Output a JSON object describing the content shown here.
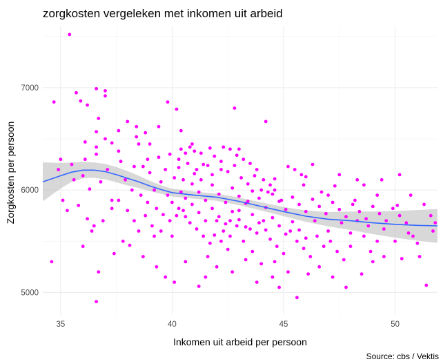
{
  "chart_data": {
    "type": "scatter",
    "title": "zorgkosten vergeleken met inkomen uit arbeid",
    "xlabel": "Inkomen uit arbeid per persoon",
    "ylabel": "Zorgkosten per persoon",
    "caption": "Source: cbs / Vektis",
    "xlim": [
      34.2,
      51.9
    ],
    "ylim": [
      4780,
      7600
    ],
    "x_ticks": [
      35,
      40,
      45,
      50
    ],
    "y_ticks": [
      5000,
      6000,
      7000
    ],
    "grid": true,
    "point_color": "#ff00ff",
    "smooth_color": "#3366ff",
    "band_color": "#bebebe",
    "points": [
      [
        35.4,
        7520
      ],
      [
        35.7,
        6950
      ],
      [
        37.0,
        6970
      ],
      [
        37.0,
        6920
      ],
      [
        36.6,
        6990
      ],
      [
        34.7,
        6860
      ],
      [
        35.9,
        6870
      ],
      [
        36.2,
        6830
      ],
      [
        36.7,
        6700
      ],
      [
        39.8,
        6860
      ],
      [
        40.2,
        6790
      ],
      [
        42.8,
        6800
      ],
      [
        44.2,
        6670
      ],
      [
        38.0,
        6670
      ],
      [
        38.4,
        6620
      ],
      [
        39.4,
        6620
      ],
      [
        40.4,
        6580
      ],
      [
        37.6,
        6580
      ],
      [
        36.1,
        6470
      ],
      [
        36.6,
        6420
      ],
      [
        36.6,
        6570
      ],
      [
        38.4,
        6520
      ],
      [
        38.8,
        6560
      ],
      [
        38.5,
        6450
      ],
      [
        36.1,
        6300
      ],
      [
        36.6,
        6350
      ],
      [
        35.0,
        6300
      ],
      [
        35.5,
        6250
      ],
      [
        34.9,
        6200
      ],
      [
        36.0,
        6140
      ],
      [
        36.8,
        6080
      ],
      [
        37.1,
        6200
      ],
      [
        37.0,
        6500
      ],
      [
        37.3,
        6460
      ],
      [
        37.6,
        6380
      ],
      [
        37.7,
        6280
      ],
      [
        38.3,
        6230
      ],
      [
        38.9,
        6300
      ],
      [
        39.4,
        6320
      ],
      [
        39.9,
        6350
      ],
      [
        40.4,
        6400
      ],
      [
        40.6,
        6360
      ],
      [
        40.8,
        6420
      ],
      [
        41.0,
        6380
      ],
      [
        41.3,
        6360
      ],
      [
        41.1,
        6200
      ],
      [
        41.4,
        6250
      ],
      [
        41.8,
        6150
      ],
      [
        42.2,
        6200
      ],
      [
        42.6,
        6400
      ],
      [
        42.9,
        6340
      ],
      [
        43.2,
        6300
      ],
      [
        43.5,
        6260
      ],
      [
        43.8,
        6200
      ],
      [
        44.1,
        6100
      ],
      [
        44.4,
        6050
      ],
      [
        44.6,
        6000
      ],
      [
        45.2,
        6230
      ],
      [
        45.5,
        6200
      ],
      [
        45.8,
        6150
      ],
      [
        46.0,
        6130
      ],
      [
        46.3,
        6250
      ],
      [
        47.0,
        5950
      ],
      [
        47.5,
        6150
      ],
      [
        48.3,
        6100
      ],
      [
        48.6,
        6050
      ],
      [
        49.4,
        6100
      ],
      [
        50.2,
        6150
      ],
      [
        51.3,
        5860
      ],
      [
        51.6,
        5750
      ],
      [
        35.8,
        5850
      ],
      [
        35.3,
        5800
      ],
      [
        36.2,
        5720
      ],
      [
        36.5,
        5650
      ],
      [
        37.3,
        5820
      ],
      [
        37.6,
        5900
      ],
      [
        38.0,
        5800
      ],
      [
        38.3,
        5700
      ],
      [
        38.8,
        5750
      ],
      [
        39.1,
        5650
      ],
      [
        39.5,
        5600
      ],
      [
        39.9,
        5700
      ],
      [
        40.2,
        5750
      ],
      [
        40.5,
        5800
      ],
      [
        40.8,
        5680
      ],
      [
        41.1,
        5620
      ],
      [
        41.4,
        5550
      ],
      [
        41.7,
        5480
      ],
      [
        42.0,
        5700
      ],
      [
        42.3,
        5600
      ],
      [
        42.6,
        5550
      ],
      [
        42.9,
        5650
      ],
      [
        43.2,
        5500
      ],
      [
        43.5,
        5620
      ],
      [
        43.8,
        5580
      ],
      [
        44.1,
        5700
      ],
      [
        44.4,
        5520
      ],
      [
        44.7,
        5450
      ],
      [
        45.0,
        5380
      ],
      [
        45.3,
        5600
      ],
      [
        45.6,
        5500
      ],
      [
        45.9,
        5430
      ],
      [
        46.2,
        5350
      ],
      [
        46.5,
        5550
      ],
      [
        46.8,
        5450
      ],
      [
        47.1,
        5500
      ],
      [
        47.4,
        5400
      ],
      [
        47.7,
        5320
      ],
      [
        48.0,
        5450
      ],
      [
        48.3,
        5700
      ],
      [
        48.6,
        5550
      ],
      [
        48.9,
        5400
      ],
      [
        49.2,
        5500
      ],
      [
        49.5,
        5350
      ],
      [
        50.0,
        5500
      ],
      [
        50.8,
        5550
      ],
      [
        51.1,
        5350
      ],
      [
        51.8,
        5680
      ],
      [
        34.6,
        5300
      ],
      [
        36.0,
        5450
      ],
      [
        36.7,
        5200
      ],
      [
        37.4,
        5380
      ],
      [
        38.1,
        5460
      ],
      [
        38.7,
        5350
      ],
      [
        39.3,
        5250
      ],
      [
        39.7,
        5150
      ],
      [
        40.6,
        5300
      ],
      [
        41.2,
        5060
      ],
      [
        41.5,
        5150
      ],
      [
        42.0,
        5250
      ],
      [
        42.7,
        5200
      ],
      [
        43.3,
        5320
      ],
      [
        44.0,
        5280
      ],
      [
        44.5,
        5150
      ],
      [
        44.8,
        5050
      ],
      [
        45.6,
        4950
      ],
      [
        46.1,
        5180
      ],
      [
        46.6,
        5250
      ],
      [
        47.2,
        5150
      ],
      [
        47.8,
        5050
      ],
      [
        48.5,
        5180
      ],
      [
        49.0,
        5300
      ],
      [
        50.3,
        5330
      ],
      [
        51.4,
        5070
      ],
      [
        36.6,
        4910
      ],
      [
        40.4,
        5980
      ],
      [
        40.6,
        5920
      ],
      [
        40.9,
        6060
      ],
      [
        41.2,
        5980
      ],
      [
        41.5,
        5900
      ],
      [
        41.8,
        6050
      ],
      [
        42.1,
        5960
      ],
      [
        42.4,
        5880
      ],
      [
        42.7,
        6020
      ],
      [
        43.0,
        5940
      ],
      [
        43.3,
        5870
      ],
      [
        43.6,
        5990
      ],
      [
        43.9,
        5920
      ],
      [
        44.2,
        5830
      ],
      [
        44.5,
        5960
      ],
      [
        44.8,
        5890
      ],
      [
        45.1,
        5810
      ],
      [
        45.4,
        5930
      ],
      [
        45.7,
        5860
      ],
      [
        46.0,
        5790
      ],
      [
        46.3,
        5910
      ],
      [
        46.6,
        5840
      ],
      [
        46.9,
        5770
      ],
      [
        47.2,
        5880
      ],
      [
        47.5,
        5810
      ],
      [
        47.8,
        5740
      ],
      [
        48.1,
        5860
      ],
      [
        48.4,
        5790
      ],
      [
        48.7,
        5720
      ],
      [
        49.0,
        5840
      ],
      [
        49.3,
        5770
      ],
      [
        49.6,
        5700
      ],
      [
        49.9,
        5820
      ],
      [
        50.2,
        5750
      ],
      [
        50.5,
        5680
      ],
      [
        39.2,
        6000
      ],
      [
        39.5,
        6080
      ],
      [
        39.8,
        5950
      ],
      [
        40.1,
        6120
      ],
      [
        40.3,
        6220
      ],
      [
        40.7,
        6260
      ],
      [
        41.0,
        6160
      ],
      [
        41.3,
        6100
      ],
      [
        41.6,
        6240
      ],
      [
        41.9,
        6330
      ],
      [
        42.2,
        6280
      ],
      [
        42.5,
        6180
      ],
      [
        42.8,
        6240
      ],
      [
        43.1,
        6120
      ],
      [
        43.4,
        6060
      ],
      [
        43.7,
        6140
      ],
      [
        44.0,
        6000
      ],
      [
        44.3,
        5980
      ],
      [
        44.6,
        6110
      ],
      [
        44.9,
        5900
      ],
      [
        38.6,
        5950
      ],
      [
        38.9,
        5880
      ],
      [
        39.3,
        5820
      ],
      [
        39.6,
        5760
      ],
      [
        40.0,
        5880
      ],
      [
        40.3,
        5820
      ],
      [
        40.6,
        5740
      ],
      [
        40.9,
        5860
      ],
      [
        41.2,
        5780
      ],
      [
        41.5,
        5700
      ],
      [
        41.8,
        5820
      ],
      [
        42.1,
        5740
      ],
      [
        42.4,
        5670
      ],
      [
        42.7,
        5790
      ],
      [
        43.0,
        5710
      ],
      [
        43.3,
        5640
      ],
      [
        43.6,
        5760
      ],
      [
        43.9,
        5680
      ],
      [
        44.2,
        5610
      ],
      [
        44.5,
        5730
      ],
      [
        44.8,
        5650
      ],
      [
        45.1,
        5570
      ],
      [
        45.4,
        5690
      ],
      [
        45.7,
        5610
      ],
      [
        46.0,
        5530
      ],
      [
        35.1,
        5900
      ],
      [
        35.6,
        6100
      ],
      [
        36.3,
        6010
      ],
      [
        37.9,
        6100
      ],
      [
        38.2,
        6000
      ],
      [
        42.3,
        6420
      ],
      [
        41.7,
        6410
      ],
      [
        40.9,
        6450
      ],
      [
        43.0,
        6400
      ],
      [
        39.0,
        6170
      ],
      [
        38.7,
        6230
      ],
      [
        37.3,
        5900
      ],
      [
        36.9,
        5700
      ],
      [
        36.4,
        5600
      ],
      [
        37.8,
        5500
      ],
      [
        38.5,
        5600
      ],
      [
        39.2,
        5550
      ],
      [
        40.0,
        5550
      ],
      [
        41.6,
        5350
      ],
      [
        42.5,
        5420
      ],
      [
        43.6,
        5400
      ],
      [
        44.6,
        5300
      ],
      [
        45.2,
        5200
      ],
      [
        46.4,
        5700
      ],
      [
        47.0,
        5600
      ],
      [
        47.6,
        5680
      ],
      [
        48.0,
        5580
      ],
      [
        48.8,
        5650
      ],
      [
        49.5,
        5620
      ],
      [
        50.6,
        5580
      ],
      [
        51.0,
        5480
      ],
      [
        51.7,
        5600
      ],
      [
        45.9,
        6050
      ],
      [
        46.7,
        5980
      ],
      [
        47.3,
        6040
      ],
      [
        48.2,
        5900
      ],
      [
        49.2,
        5950
      ],
      [
        50.1,
        5850
      ],
      [
        50.7,
        5950
      ],
      [
        40.1,
        5100
      ],
      [
        42.2,
        5500
      ],
      [
        43.8,
        5100
      ],
      [
        41.9,
        5560
      ],
      [
        42.6,
        5700
      ],
      [
        43.0,
        5800
      ],
      [
        43.4,
        5890
      ],
      [
        40.5,
        6100
      ],
      [
        40.3,
        6300
      ],
      [
        39.7,
        6200
      ],
      [
        39.0,
        6450
      ]
    ],
    "smooth_x": [
      34.2,
      35.0,
      35.5,
      36.0,
      36.5,
      37.0,
      37.5,
      38.0,
      38.5,
      39.0,
      39.5,
      40.0,
      41.0,
      42.0,
      43.0,
      44.0,
      45.0,
      46.0,
      47.0,
      48.0,
      49.0,
      50.0,
      51.0,
      51.9
    ],
    "smooth_y": [
      6080,
      6140,
      6175,
      6195,
      6195,
      6180,
      6150,
      6115,
      6080,
      6040,
      6005,
      5975,
      5950,
      5930,
      5890,
      5840,
      5790,
      5745,
      5715,
      5700,
      5680,
      5665,
      5655,
      5650
    ],
    "band_half_width": [
      190,
      125,
      95,
      80,
      75,
      75,
      75,
      70,
      60,
      50,
      42,
      38,
      35,
      35,
      37,
      40,
      45,
      55,
      70,
      90,
      110,
      130,
      150,
      165
    ]
  }
}
